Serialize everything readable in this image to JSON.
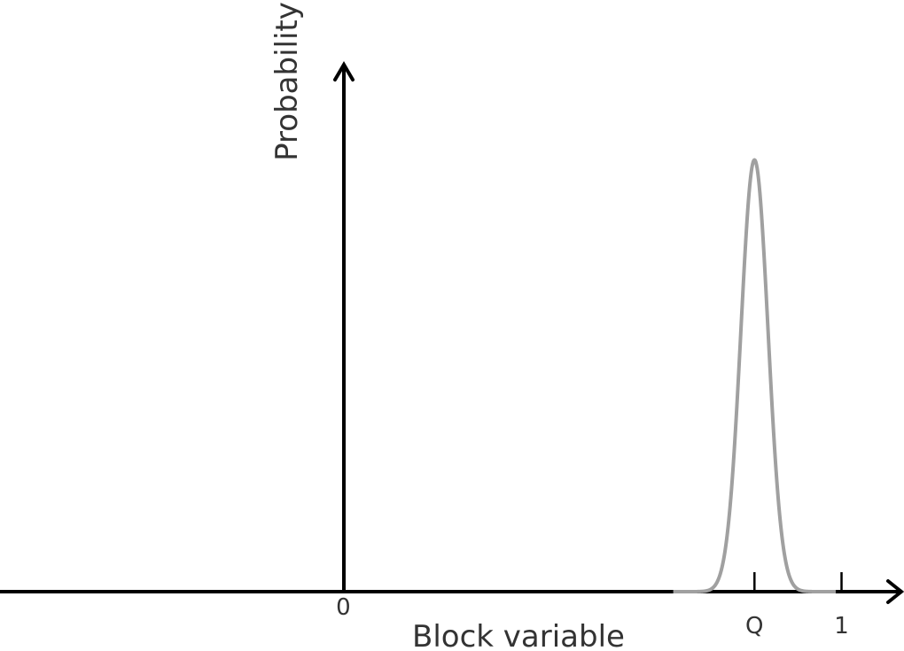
{
  "chart_data": {
    "type": "line",
    "title": "",
    "xlabel": "Block variable",
    "ylabel": "Probability",
    "x_ticks": [
      {
        "value": 0,
        "label": "0"
      },
      {
        "value": 0.85,
        "label": "Q"
      },
      {
        "value": 1.03,
        "label": "1"
      }
    ],
    "xlim": [
      -0.71,
      1.15
    ],
    "ylim": [
      0,
      1.2
    ],
    "grid": false,
    "legend": "none",
    "series": [
      {
        "color": "#a0a0a0",
        "distribution": "gaussian",
        "mean": 0.85,
        "sd": 0.028,
        "peak": 1.0
      }
    ]
  }
}
